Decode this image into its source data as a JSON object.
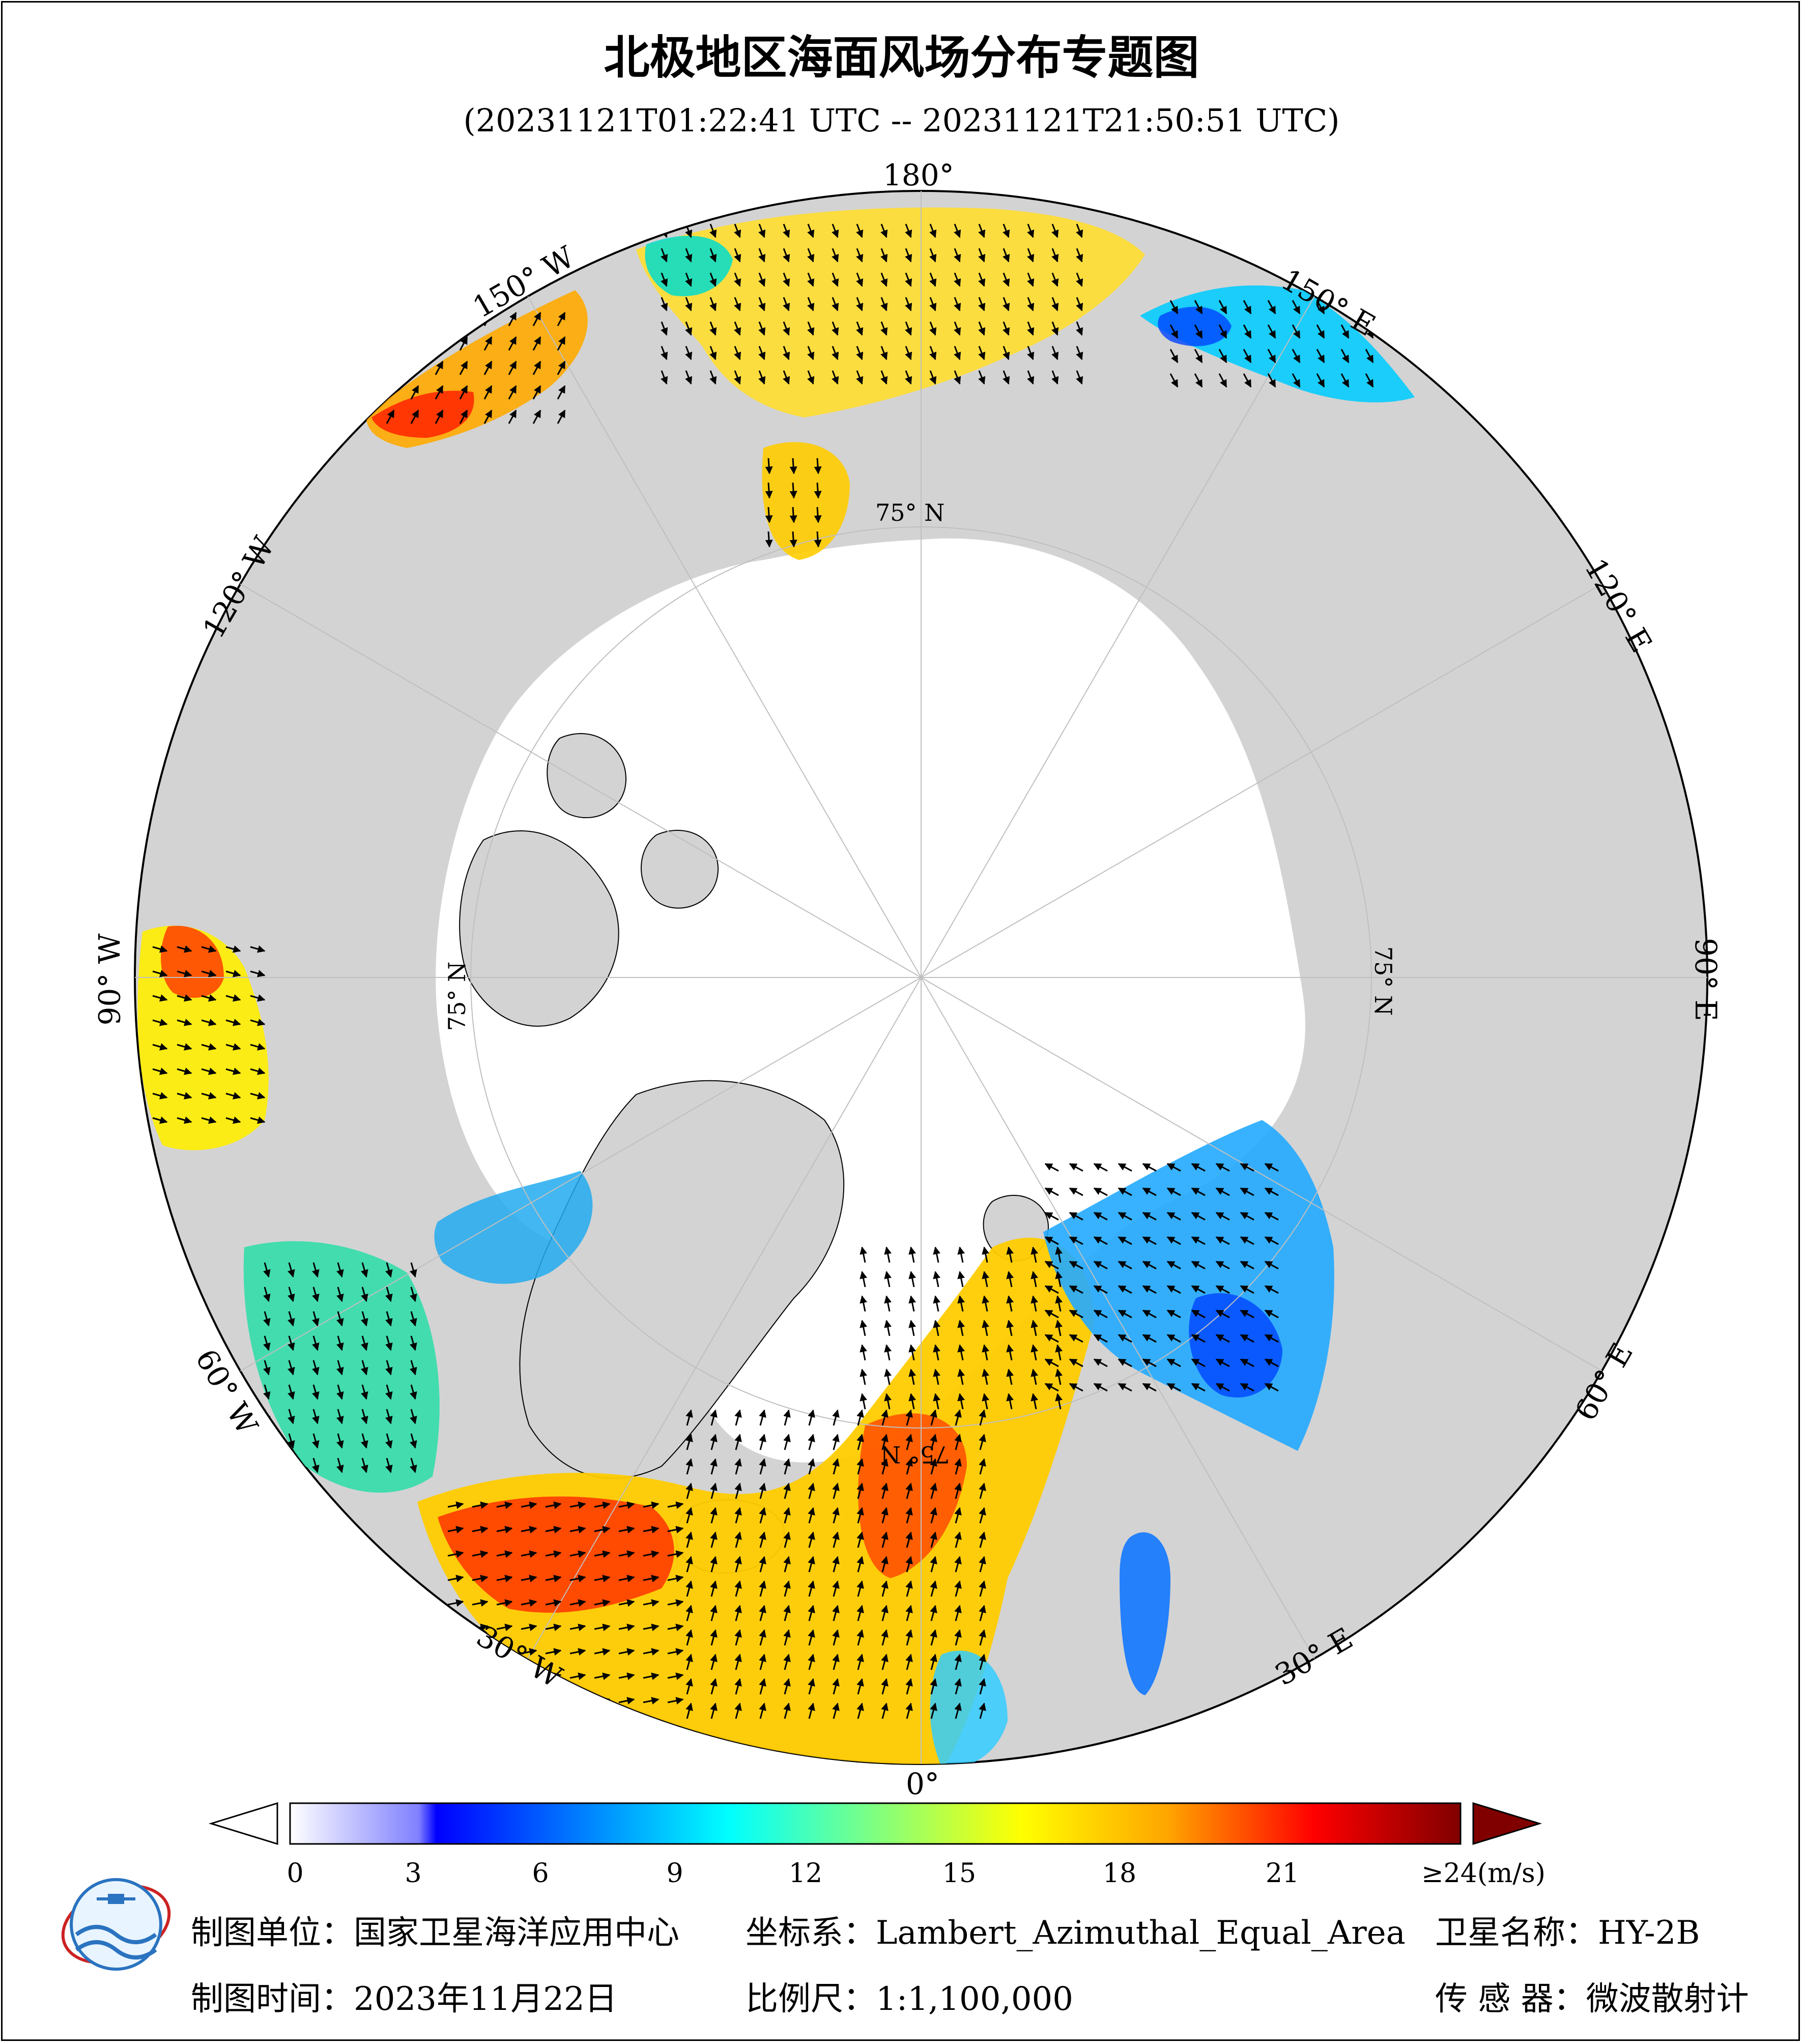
{
  "title": "北极地区海面风场分布专题图",
  "subtitle": "(20231121T01:22:41 UTC -- 20231121T21:50:51 UTC)",
  "meridian_labels": [
    "180°",
    "150° E",
    "120° E",
    "90° E",
    "60° E",
    "30° E",
    "0°",
    "30° W",
    "60° W",
    "90° W",
    "120° W",
    "150° W"
  ],
  "parallel_labels": [
    "75° N",
    "75° N",
    "75° N",
    "75° N"
  ],
  "colorbar": {
    "unit_label": "≥24(m/s)",
    "ticks": [
      "0",
      "3",
      "6",
      "9",
      "12",
      "15",
      "18",
      "21"
    ],
    "min": 0,
    "max": 24
  },
  "footer": {
    "org": "制图单位：国家卫星海洋应用中心",
    "crs": "坐标系：Lambert_Azimuthal_Equal_Area",
    "satellite": "卫星名称：HY-2B",
    "date": "制图时间：2023年11月22日",
    "scale": "比例尺：1:1,100,000",
    "sensor": "传  感  器：微波散射计"
  },
  "colors": {
    "land": "#d3d3d3",
    "ice": "#ffffff",
    "wind_low": "#0000ff",
    "wind_mid": "#00ffff",
    "wind_mid2": "#ffff00",
    "wind_high": "#ff0000",
    "wind_max": "#800000"
  }
}
